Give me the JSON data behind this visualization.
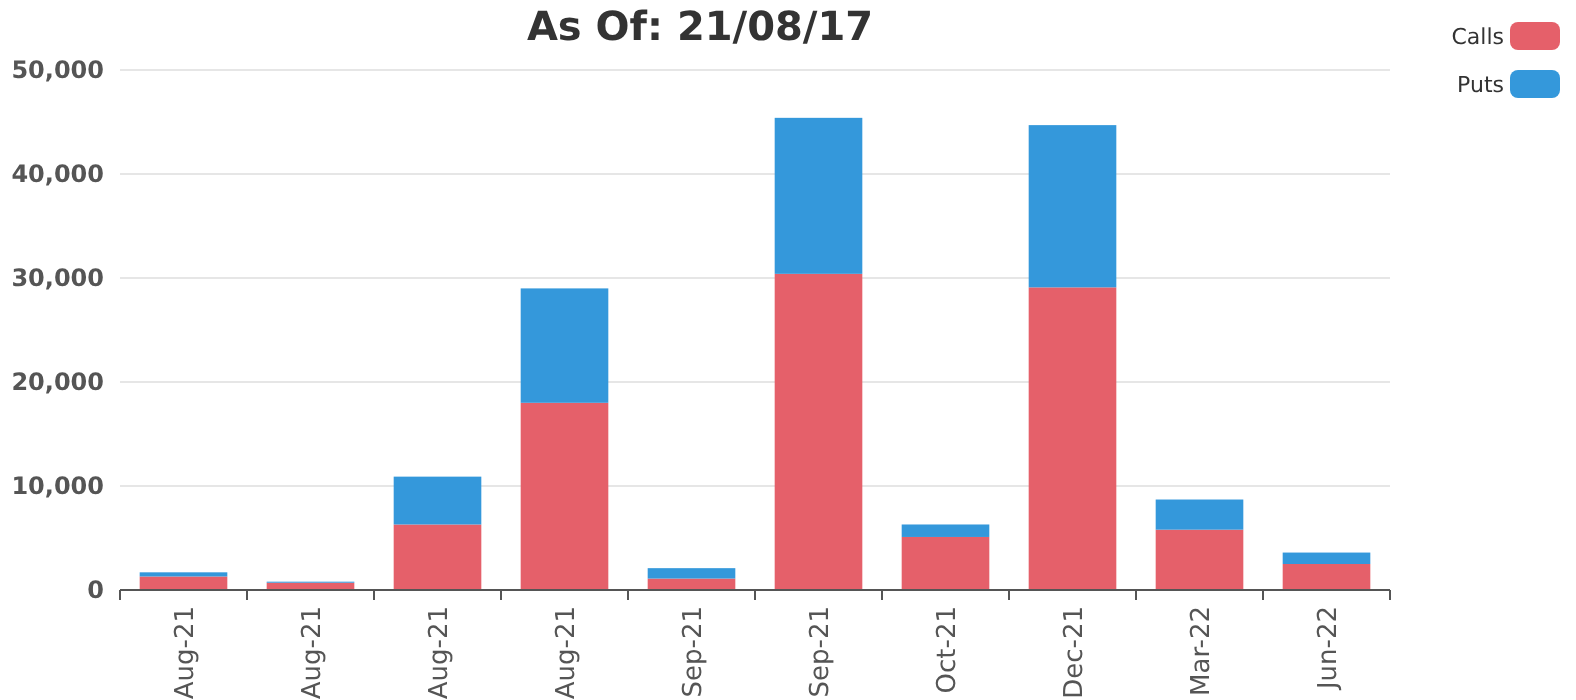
{
  "chart_data": {
    "type": "bar",
    "title": "As Of: 21/08/17",
    "stacked": true,
    "categories": [
      "Aug-21",
      "Aug-21",
      "Aug-21",
      "Aug-21",
      "Sep-21",
      "Sep-21",
      "Oct-21",
      "Dec-21",
      "Mar-22",
      "Jun-22"
    ],
    "series": [
      {
        "name": "Calls",
        "color": "#e5606a",
        "values": [
          1300,
          700,
          6300,
          18000,
          1100,
          30400,
          5100,
          29100,
          5800,
          2500
        ]
      },
      {
        "name": "Puts",
        "color": "#3498db",
        "values": [
          400,
          100,
          4600,
          11000,
          1000,
          15000,
          1200,
          15600,
          2900,
          1100
        ]
      }
    ],
    "ylim": [
      0,
      50000
    ],
    "yticks": [
      {
        "value": 0,
        "label": "0"
      },
      {
        "value": 10000,
        "label": "10,000"
      },
      {
        "value": 20000,
        "label": "20,000"
      },
      {
        "value": 30000,
        "label": "30,000"
      },
      {
        "value": 40000,
        "label": "40,000"
      },
      {
        "value": 50000,
        "label": "50,000"
      }
    ],
    "grid": "y",
    "legend": "top right"
  }
}
